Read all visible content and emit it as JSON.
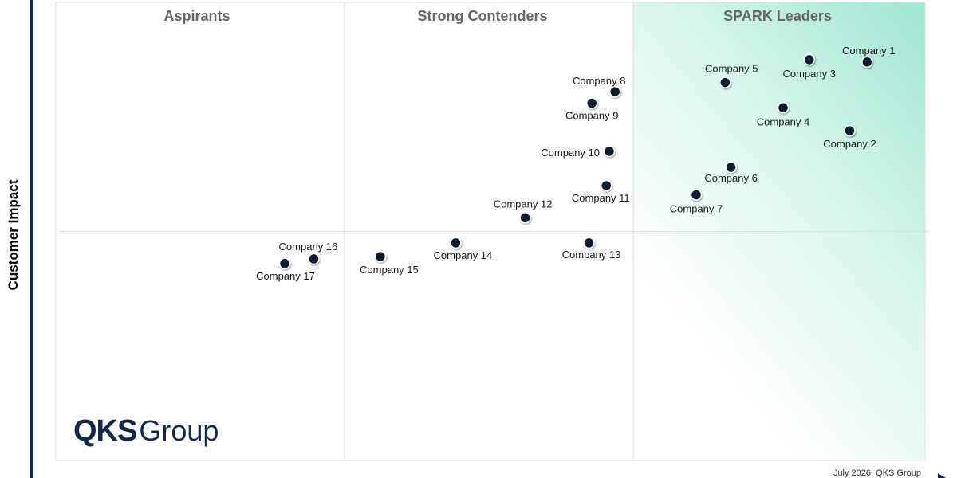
{
  "y_axis_label": "Customer Impact",
  "footer": "July 2026, QKS Group",
  "logo": {
    "bold": "QKS",
    "light": "Group"
  },
  "colors": {
    "leader_gradient": "#9fe6d2",
    "marker": "#101a2e",
    "axis_bar": "#14284b",
    "grid": "#dddddd"
  },
  "chart_data": {
    "type": "scatter",
    "title": "",
    "xlabel": "",
    "ylabel": "Customer Impact",
    "xlim": [
      0,
      3
    ],
    "ylim": [
      0,
      2
    ],
    "grid": true,
    "quadrants": [
      "Aspirants",
      "Strong Contenders",
      "SPARK Leaders"
    ],
    "points": [
      {
        "label": "Company 1",
        "x": 2.8,
        "y": 1.74
      },
      {
        "label": "Company 2",
        "x": 2.74,
        "y": 1.44
      },
      {
        "label": "Company 3",
        "x": 2.6,
        "y": 1.75
      },
      {
        "label": "Company 4",
        "x": 2.51,
        "y": 1.54
      },
      {
        "label": "Company 5",
        "x": 2.31,
        "y": 1.65
      },
      {
        "label": "Company 6",
        "x": 2.33,
        "y": 1.28
      },
      {
        "label": "Company 7",
        "x": 2.21,
        "y": 1.16
      },
      {
        "label": "Company 8",
        "x": 1.93,
        "y": 1.61
      },
      {
        "label": "Company 9",
        "x": 1.85,
        "y": 1.56
      },
      {
        "label": "Company 10",
        "x": 1.91,
        "y": 1.35
      },
      {
        "label": "Company 11",
        "x": 1.9,
        "y": 1.2
      },
      {
        "label": "Company 12",
        "x": 1.62,
        "y": 1.06
      },
      {
        "label": "Company 13",
        "x": 1.84,
        "y": 0.95
      },
      {
        "label": "Company 14",
        "x": 1.38,
        "y": 0.95
      },
      {
        "label": "Company 15",
        "x": 1.12,
        "y": 0.89
      },
      {
        "label": "Company 16",
        "x": 0.89,
        "y": 0.88
      },
      {
        "label": "Company 17",
        "x": 0.79,
        "y": 0.86
      }
    ]
  }
}
